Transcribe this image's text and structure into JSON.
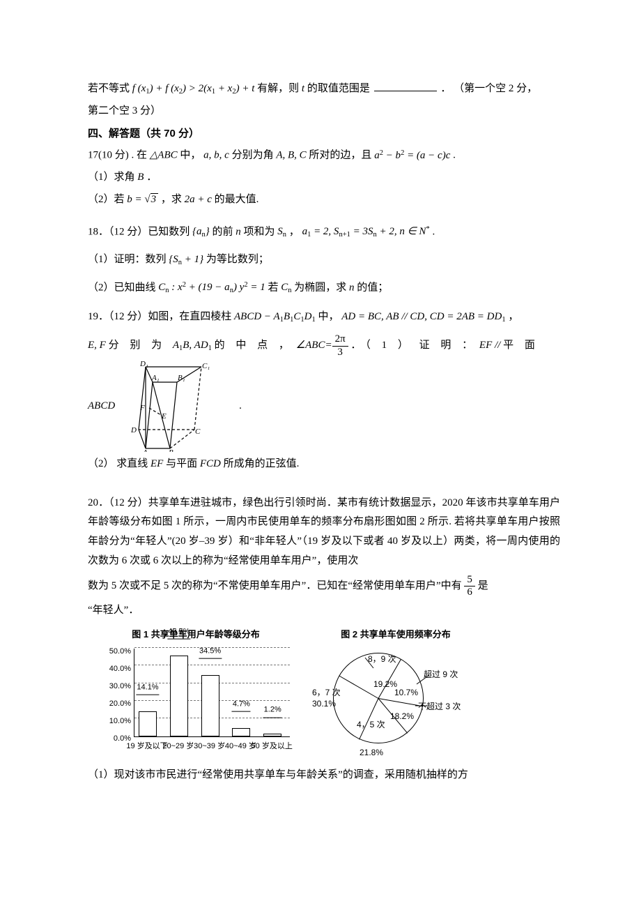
{
  "top": {
    "line1a": "若不等式",
    "line1_math": "f (x₁) + f (x₂) > 2(x₁ + x₂) + t",
    "line1b": "有解，则",
    "line1c": "的取值范围是",
    "line1_tail": "．  （第一个空 2 分，",
    "line2": "第二个空 3 分）",
    "t_var": "t"
  },
  "section4": "四、解答题（共 70 分）",
  "q17": {
    "head_a": "17(10 分) . 在",
    "tri": "△ABC",
    "head_b": "中，",
    "abc1": "a, b, c",
    "head_c": " 分别为角 ",
    "ABC": "A, B, C",
    "head_d": " 所对的边，且 ",
    "eq": "a² − b² = (a − c)c",
    "tail": " .",
    "p1": "（1）求角 ",
    "B": "B",
    "p1t": " ．",
    "p2a": "（2）若  ",
    "b_eq": "b =",
    "root3": "3",
    "p2b": "，求 ",
    "expr2": "2a + c",
    "p2c": " 的最大值."
  },
  "q18": {
    "head": "18．（12 分）已知数列",
    "an": "{aₙ}",
    "mid1": "的前",
    "n": " n ",
    "mid2": "项和为",
    "Sn": "Sₙ",
    "mid3": "，",
    "cond": "a₁ = 2, Sₙ₊₁ = 3Sₙ + 2, n ∈ N*",
    "tail": ".",
    "p1a": "（1）证明：数列",
    "sn1": "{Sₙ + 1}",
    "p1b": "为等比数列；",
    "p2a": "（2）已知曲线",
    "Cn": "Cₙ : x² + (19 − aₙ) y² = 1",
    "p2b": " 若 ",
    "Cn2": "Cₙ",
    "p2c": " 为椭圆，求",
    "p2d": "的值；"
  },
  "q19": {
    "head": "19．（12 分）如图，在直四棱柱 ",
    "prism": "ABCD − A₁B₁C₁D₁",
    "mid": " 中，",
    "cond": "AD = BC, AB // CD, CD = 2AB = DD₁",
    "tail": " ，",
    "l2a_ef": "E, F",
    "l2a_txt": " 分 别 为 ",
    "l2a_ab": "A₁B, AD₁",
    "l2a_mid": " 的 中 点 ，",
    "abc_ang": "∠ABC=",
    "frac_num": "2π",
    "frac_den": "3",
    "l2b": "．（ 1 ）   证 明 ：",
    "efpar": "EF // ",
    "plane_word": "平 面",
    "row_abcd": "ABCD",
    "p2": "（2）  求直线 ",
    "EF": "EF",
    "p2b": " 与平面 ",
    "FCD": "FCD",
    "p2c": " 所成角的正弦值."
  },
  "q20": {
    "body1": "20．（12 分）共享单车进驻城市，绿色出行引领时尚．某市有统计数据显示，2020 年该市共享单车用户年龄等级分布如图 1 所示，一周内市民使用单车的频率分布扇形图如图 2 所示. 若将共享单车用户按照年龄分为“年轻人”(20 岁–39 岁）和“非年轻人”（19 岁及以下或者 40 岁及以上）两类，将一周内使用的次数为 6 次或 6 次以上的称为“经常使用单车用户”，使用次",
    "body2a": "数为 5 次或不足 5 次的称为“不常使用单车用户”．已知在“经常使用单车用户”中有",
    "frac_num": "5",
    "frac_den": "6",
    "body2b": "是",
    "body3": "“年轻人”．",
    "p1": "（1）现对该市市民进行“经常使用共享单车与年龄关系”的调查，采用随机抽样的方",
    "fig1_title": "图 1  共享单车用户年龄等级分布",
    "fig2_title": "图 2  共享单车使用频率分布",
    "bar": {
      "y_ticks": [
        "50.0%",
        "40.0%",
        "30.0%",
        "20.0%",
        "10.0%",
        "0.0%"
      ],
      "cats_label": [
        "19 岁及以下",
        "20~29 岁",
        "30~39 岁",
        "40~49 岁",
        "50 岁及以上"
      ],
      "cats_pct": [
        "14.1%",
        "45.5%",
        "34.5%",
        "4.7%",
        "1.2%"
      ],
      "heights_f": [
        0.282,
        0.91,
        0.69,
        0.094,
        0.024
      ],
      "grid_lines": [
        0.2,
        0.4,
        0.6,
        0.8,
        1.0
      ]
    },
    "pie": {
      "slices": [
        {
          "label1": "6，7 次",
          "label2": "30.1%",
          "angle_deg": -100
        },
        {
          "label1": "8，9 次",
          "label2": "19.2%",
          "angle_deg": -25
        },
        {
          "label1": "超过 9 次",
          "label2": "10.7%",
          "angle_deg": 30
        },
        {
          "label1": "不超过 3 次",
          "label2": "18.2%",
          "angle_deg": 75
        },
        {
          "label1": "4，5 次",
          "label2": "21.8%",
          "angle_deg": 140
        }
      ]
    }
  },
  "colors": {
    "text": "#000000",
    "bg": "#ffffff",
    "grid": "#777777"
  }
}
